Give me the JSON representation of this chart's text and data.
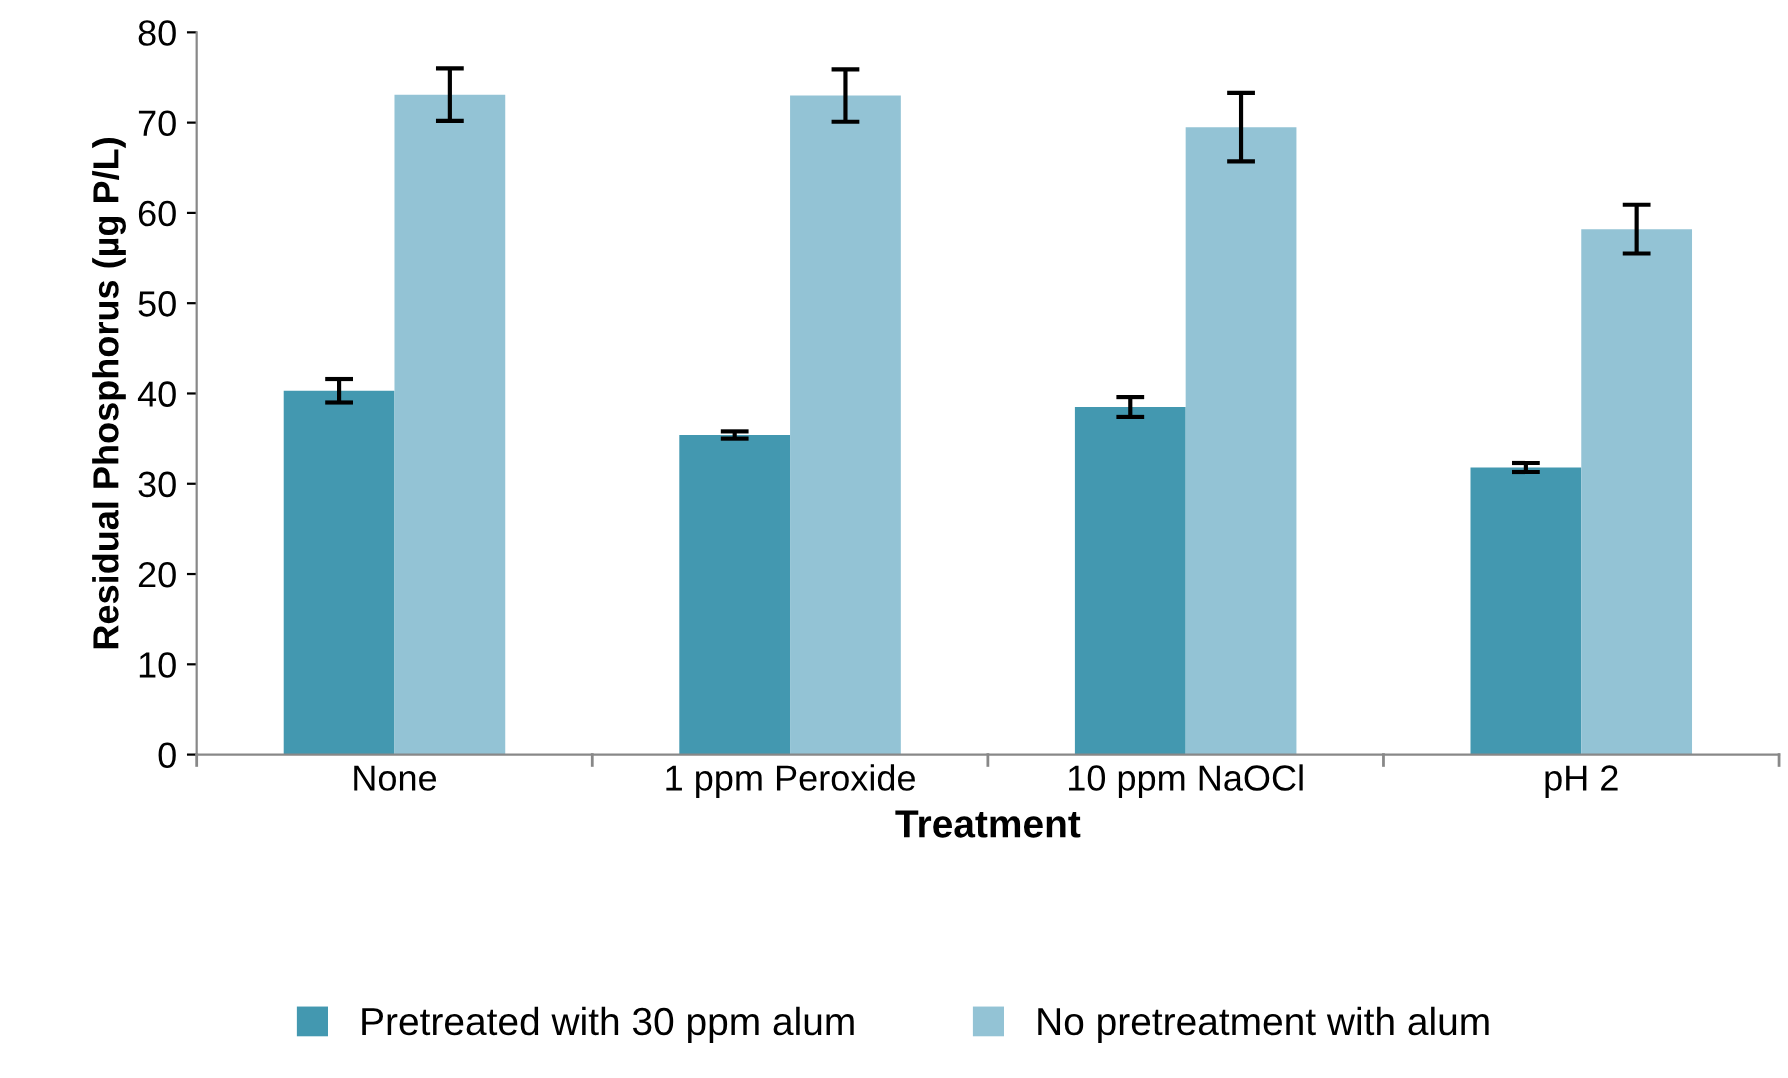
{
  "chart_data": {
    "type": "bar",
    "xlabel": "Treatment",
    "ylabel": "Residual Phosphorus (µg P/L)",
    "categories": [
      "None",
      "1 ppm Peroxide",
      "10 ppm NaOCl",
      "pH 2"
    ],
    "series": [
      {
        "name": "Pretreated with 30 ppm alum",
        "color": "#4398b0",
        "values": [
          40.3,
          35.4,
          38.5,
          31.8
        ],
        "errors": [
          1.3,
          0.4,
          1.1,
          0.5
        ]
      },
      {
        "name": "No pretreatment with alum",
        "color": "#93c3d5",
        "values": [
          73.1,
          73.0,
          69.5,
          58.2
        ],
        "errors": [
          2.9,
          2.9,
          3.8,
          2.7
        ]
      }
    ],
    "ylim": [
      0,
      80
    ],
    "yticks": [
      0,
      10,
      20,
      30,
      40,
      50,
      60,
      70,
      80
    ],
    "grid": false,
    "legend": "bottom"
  }
}
